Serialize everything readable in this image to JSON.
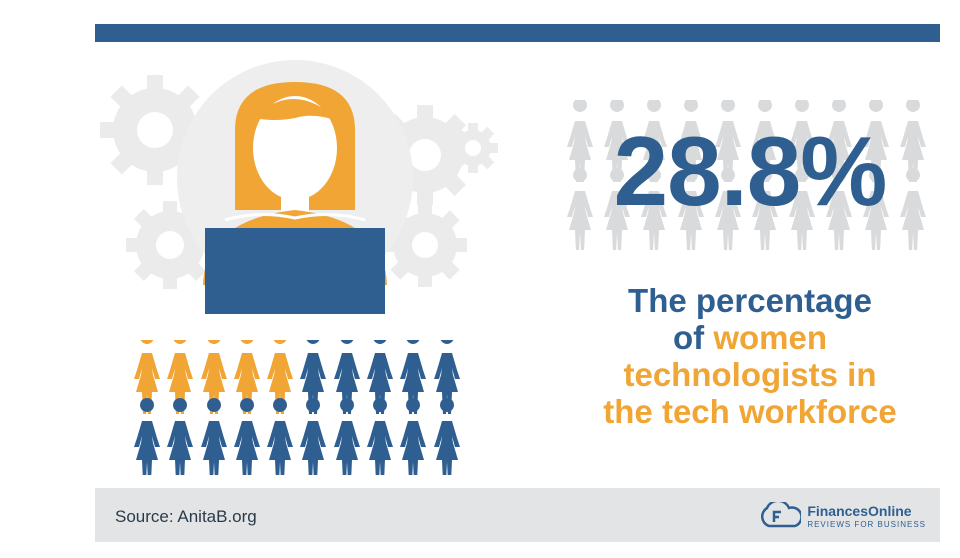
{
  "stat": {
    "value": "28.8%"
  },
  "caption": {
    "line1": "The percentage",
    "line2_prefix": "of ",
    "line2_highlight": "women",
    "line3": "technologists in",
    "line4": "the tech workforce"
  },
  "pictogram": {
    "total_figures": 20,
    "highlight_fraction": 0.288,
    "colors": {
      "highlight": "#f0a535",
      "base": "#2f5f90",
      "faint": "#d9dadc"
    }
  },
  "footer": {
    "source": "Source: AnitaB.org",
    "brand": "FinancesOnline",
    "tagline": "REVIEWS FOR BUSINESS"
  },
  "colors": {
    "accent_blue": "#2f5f90",
    "accent_orange": "#f0a535",
    "footer_bg": "#e3e4e6"
  },
  "icons": [
    "gear-icon",
    "woman-icon",
    "laptop-icon",
    "person-icon",
    "financesonline-logo-icon"
  ]
}
